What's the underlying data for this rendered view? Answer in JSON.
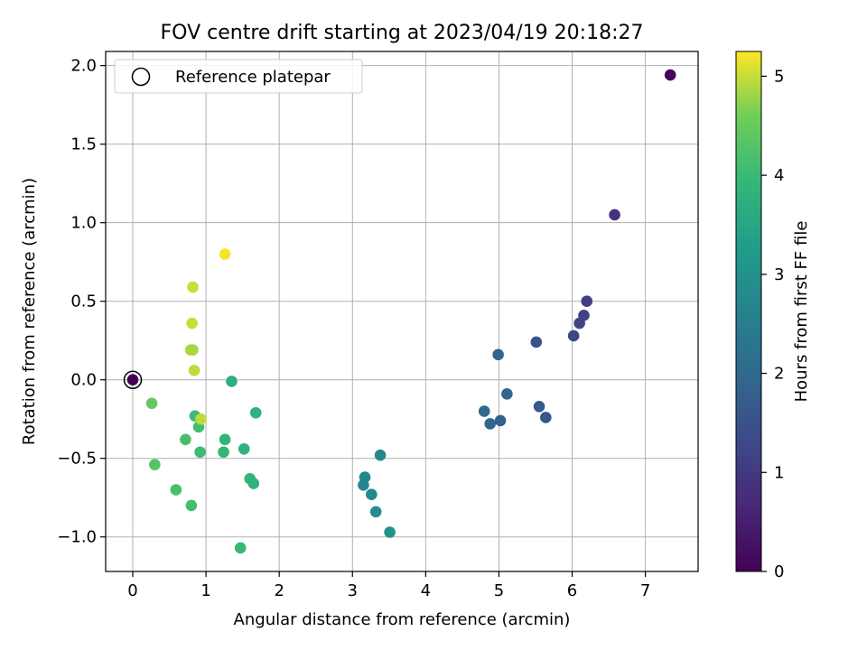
{
  "chart_data": {
    "type": "scatter",
    "title": "FOV centre drift starting at 2023/04/19 20:18:27",
    "xlabel": "Angular distance from reference (arcmin)",
    "ylabel": "Rotation from reference (arcmin)",
    "colorbar_label": "Hours from first FF file",
    "colormap": "viridis",
    "xlim": [
      -0.37,
      7.72
    ],
    "ylim": [
      -1.22,
      2.09
    ],
    "clim": [
      0,
      5.25
    ],
    "xticks": [
      0,
      1,
      2,
      3,
      4,
      5,
      6,
      7
    ],
    "xtick_labels": [
      "0",
      "1",
      "2",
      "3",
      "4",
      "5",
      "6",
      "7"
    ],
    "yticks": [
      -1.0,
      -0.5,
      0.0,
      0.5,
      1.0,
      1.5,
      2.0
    ],
    "ytick_labels": [
      "−1.0",
      "−0.5",
      "0.0",
      "0.5",
      "1.0",
      "1.5",
      "2.0"
    ],
    "cticks": [
      0,
      1,
      2,
      3,
      4,
      5
    ],
    "ctick_labels": [
      "0",
      "1",
      "2",
      "3",
      "4",
      "5"
    ],
    "grid": true,
    "legend": {
      "placement": "top-left",
      "entries": [
        {
          "label": "Reference platepar",
          "marker": "open-circle"
        }
      ]
    },
    "reference": {
      "x": 0,
      "y": 0
    },
    "points": [
      {
        "x": 7.34,
        "y": 1.94,
        "c": 0.1
      },
      {
        "x": 6.58,
        "y": 1.05,
        "c": 0.85
      },
      {
        "x": 6.2,
        "y": 0.5,
        "c": 1.1
      },
      {
        "x": 6.16,
        "y": 0.41,
        "c": 1.15
      },
      {
        "x": 6.1,
        "y": 0.36,
        "c": 1.2
      },
      {
        "x": 6.02,
        "y": 0.28,
        "c": 1.25
      },
      {
        "x": 5.51,
        "y": 0.24,
        "c": 1.55
      },
      {
        "x": 5.55,
        "y": -0.17,
        "c": 1.7
      },
      {
        "x": 5.64,
        "y": -0.24,
        "c": 1.6
      },
      {
        "x": 4.99,
        "y": 0.16,
        "c": 1.9
      },
      {
        "x": 5.11,
        "y": -0.09,
        "c": 1.95
      },
      {
        "x": 4.8,
        "y": -0.2,
        "c": 2.0
      },
      {
        "x": 4.88,
        "y": -0.28,
        "c": 1.95
      },
      {
        "x": 5.02,
        "y": -0.26,
        "c": 1.85
      },
      {
        "x": 3.38,
        "y": -0.48,
        "c": 2.8
      },
      {
        "x": 3.17,
        "y": -0.62,
        "c": 2.75
      },
      {
        "x": 3.15,
        "y": -0.67,
        "c": 2.7
      },
      {
        "x": 3.26,
        "y": -0.73,
        "c": 2.8
      },
      {
        "x": 3.32,
        "y": -0.84,
        "c": 2.9
      },
      {
        "x": 3.51,
        "y": -0.97,
        "c": 3.05
      },
      {
        "x": 1.35,
        "y": -0.01,
        "c": 3.7
      },
      {
        "x": 1.68,
        "y": -0.21,
        "c": 3.8
      },
      {
        "x": 1.26,
        "y": -0.38,
        "c": 3.85
      },
      {
        "x": 1.52,
        "y": -0.44,
        "c": 3.8
      },
      {
        "x": 1.24,
        "y": -0.46,
        "c": 3.9
      },
      {
        "x": 1.6,
        "y": -0.63,
        "c": 3.85
      },
      {
        "x": 1.65,
        "y": -0.66,
        "c": 3.8
      },
      {
        "x": 1.47,
        "y": -1.07,
        "c": 3.95
      },
      {
        "x": 0.85,
        "y": -0.23,
        "c": 4.05
      },
      {
        "x": 0.9,
        "y": -0.3,
        "c": 4.1
      },
      {
        "x": 0.92,
        "y": -0.46,
        "c": 4.05
      },
      {
        "x": 0.72,
        "y": -0.38,
        "c": 4.15
      },
      {
        "x": 0.59,
        "y": -0.7,
        "c": 4.15
      },
      {
        "x": 0.8,
        "y": -0.8,
        "c": 4.1
      },
      {
        "x": 0.26,
        "y": -0.15,
        "c": 4.45
      },
      {
        "x": 0.3,
        "y": -0.54,
        "c": 4.3
      },
      {
        "x": 0.93,
        "y": -0.25,
        "c": 4.95
      },
      {
        "x": 0.84,
        "y": 0.06,
        "c": 4.95
      },
      {
        "x": 0.79,
        "y": 0.19,
        "c": 4.9
      },
      {
        "x": 0.82,
        "y": 0.19,
        "c": 4.85
      },
      {
        "x": 0.81,
        "y": 0.36,
        "c": 5.0
      },
      {
        "x": 0.82,
        "y": 0.59,
        "c": 5.0
      },
      {
        "x": 1.26,
        "y": 0.8,
        "c": 5.2
      },
      {
        "x": 0.0,
        "y": 0.0,
        "c": 0.0
      }
    ]
  }
}
